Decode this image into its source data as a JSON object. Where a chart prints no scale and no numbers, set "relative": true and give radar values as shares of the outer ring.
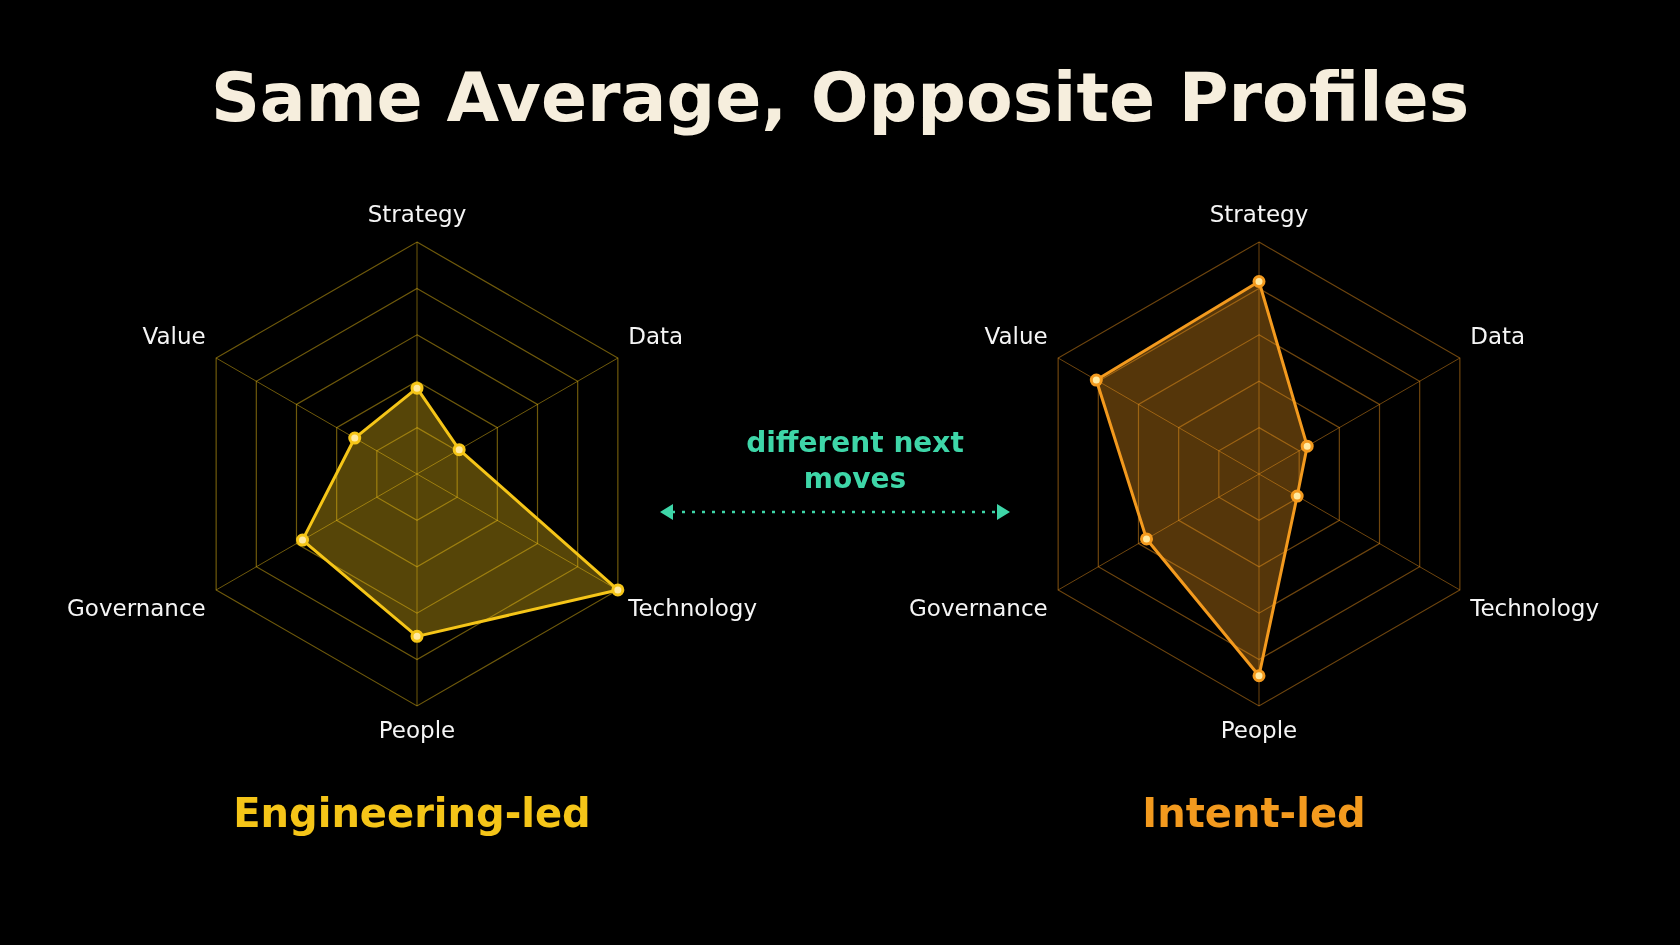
{
  "chart_data": [
    {
      "type": "radar",
      "title": "Same Average, Opposite Profiles",
      "categories": [
        "Strategy",
        "Data",
        "Technology",
        "People",
        "Governance",
        "Value"
      ],
      "relative": true,
      "legend": false,
      "marker": "circle",
      "annotations": [
        "different next moves"
      ],
      "series": [
        {
          "name": "Engineering-led",
          "color": "#f5c518",
          "values": [
            0.37,
            0.21,
            1.0,
            0.7,
            0.57,
            0.31
          ]
        }
      ]
    },
    {
      "type": "radar",
      "categories": [
        "Strategy",
        "Data",
        "Technology",
        "People",
        "Governance",
        "Value"
      ],
      "relative": true,
      "legend": false,
      "marker": "circle",
      "series": [
        {
          "name": "Intent-led",
          "color": "#f39a1e",
          "values": [
            0.83,
            0.24,
            0.19,
            0.87,
            0.56,
            0.81
          ]
        }
      ]
    }
  ]
}
